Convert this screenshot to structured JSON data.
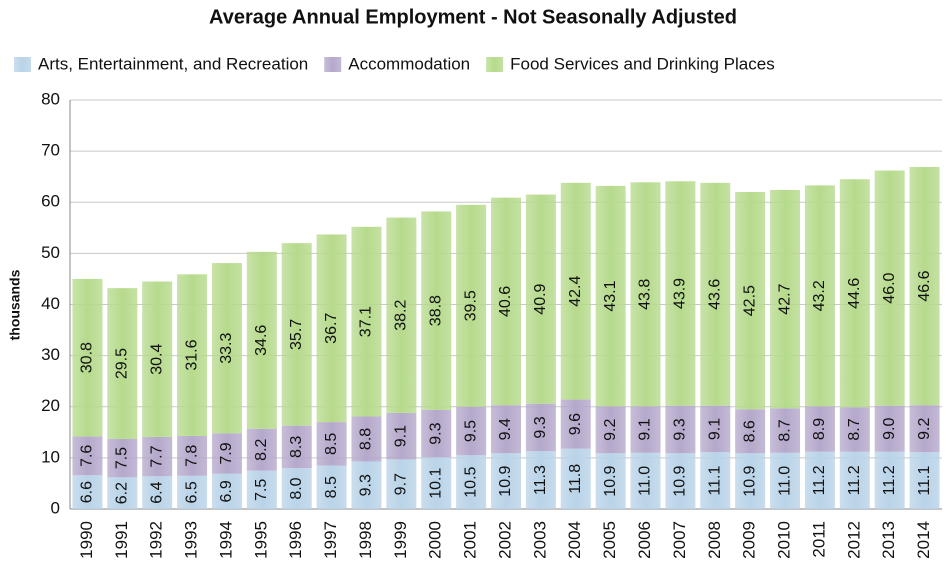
{
  "chart_data": {
    "type": "stacked-bar",
    "title": "Average Annual Employment  - Not Seasonally Adjusted",
    "y_label": "thousands",
    "categories": [
      "1990",
      "1991",
      "1992",
      "1993",
      "1994",
      "1995",
      "1996",
      "1997",
      "1998",
      "1999",
      "2000",
      "2001",
      "2002",
      "2003",
      "2004",
      "2005",
      "2006",
      "2007",
      "2008",
      "2009",
      "2010",
      "2011",
      "2012",
      "2013",
      "2014"
    ],
    "series": [
      {
        "name": "Arts, Entertainment, and Recreation",
        "color": "#b9d3e8",
        "values": [
          6.6,
          6.2,
          6.4,
          6.5,
          6.9,
          7.5,
          8,
          8.5,
          9.3,
          9.7,
          10.1,
          10.5,
          10.9,
          11.3,
          11.8,
          10.9,
          11,
          10.9,
          11.1,
          10.9,
          11,
          11.2,
          11.2,
          11.2,
          11.1
        ],
        "value_labels": [
          "6.6",
          "6.2",
          "6.4",
          "6.5",
          "6.9",
          "7.5",
          "8.0",
          "8.5",
          "9.3",
          "9.7",
          "10.1",
          "10.5",
          "10.9",
          "11.3",
          "11.8",
          "10.9",
          "11.0",
          "10.9",
          "11.1",
          "10.9",
          "11.0",
          "11.2",
          "11.2",
          "11.2",
          "11.1"
        ]
      },
      {
        "name": "Accommodation",
        "color": "#b5a8cb",
        "values": [
          7.6,
          7.5,
          7.7,
          7.8,
          7.9,
          8.2,
          8.3,
          8.5,
          8.8,
          9.1,
          9.3,
          9.5,
          9.4,
          9.3,
          9.6,
          9.2,
          9.1,
          9.3,
          9.1,
          8.6,
          8.7,
          8.9,
          8.7,
          9,
          9.2
        ],
        "value_labels": [
          "7.6",
          "7.5",
          "7.7",
          "7.8",
          "7.9",
          "8.2",
          "8.3",
          "8.5",
          "8.8",
          "9.1",
          "9.3",
          "9.5",
          "9.4",
          "9.3",
          "9.6",
          "9.2",
          "9.1",
          "9.3",
          "9.1",
          "8.6",
          "8.7",
          "8.9",
          "8.7",
          "9.0",
          "9.2"
        ]
      },
      {
        "name": "Food Services and Drinking Places",
        "color": "#b6da8c",
        "values": [
          30.8,
          29.5,
          30.4,
          31.6,
          33.3,
          34.6,
          35.7,
          36.7,
          37.1,
          38.2,
          38.8,
          39.5,
          40.6,
          40.9,
          42.4,
          43.1,
          43.8,
          43.9,
          43.6,
          42.5,
          42.7,
          43.2,
          44.6,
          46,
          46.6
        ],
        "value_labels": [
          "30.8",
          "29.5",
          "30.4",
          "31.6",
          "33.3",
          "34.6",
          "35.7",
          "36.7",
          "37.1",
          "38.2",
          "38.8",
          "39.5",
          "40.6",
          "40.9",
          "42.4",
          "43.1",
          "43.8",
          "43.9",
          "43.6",
          "42.5",
          "42.7",
          "43.2",
          "44.6",
          "46.0",
          "46.6"
        ]
      }
    ],
    "ylim": [
      0,
      80
    ],
    "yticks": [
      0,
      10,
      20,
      30,
      40,
      50,
      60,
      70,
      80
    ],
    "grid": true,
    "legend": "top"
  }
}
